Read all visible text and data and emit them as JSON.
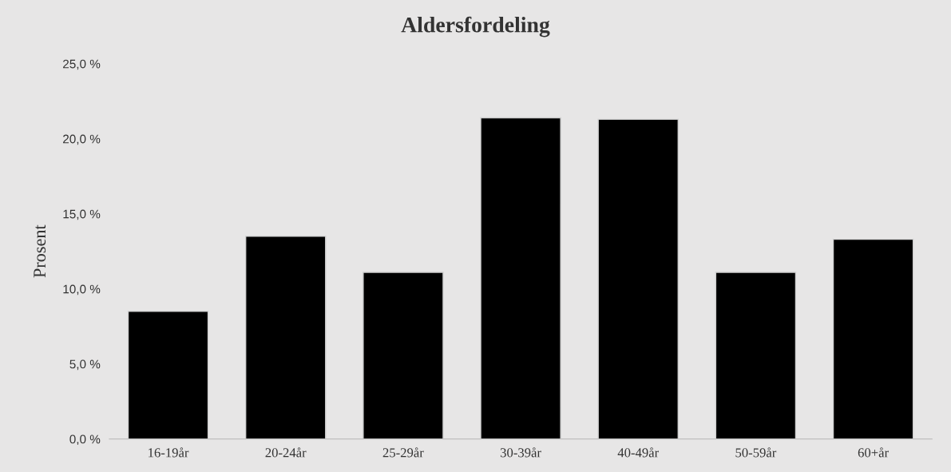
{
  "chart_data": {
    "type": "bar",
    "title": "Aldersfordeling",
    "ylabel": "Prosent",
    "categories": [
      "16-19år",
      "20-24år",
      "25-29år",
      "30-39år",
      "40-49år",
      "50-59år",
      "60+år"
    ],
    "values": [
      8.5,
      13.5,
      11.1,
      21.4,
      21.3,
      11.1,
      13.3
    ],
    "color": "#000000",
    "ylim": [
      0,
      25
    ],
    "yticks": [
      {
        "value": 0,
        "label": "0,0 %"
      },
      {
        "value": 5,
        "label": "5,0 %"
      },
      {
        "value": 10,
        "label": "10,0 %"
      },
      {
        "value": 15,
        "label": "15,0 %"
      },
      {
        "value": 20,
        "label": "20,0 %"
      },
      {
        "value": 25,
        "label": "25,0 %"
      }
    ],
    "grid": false,
    "legend": false
  }
}
